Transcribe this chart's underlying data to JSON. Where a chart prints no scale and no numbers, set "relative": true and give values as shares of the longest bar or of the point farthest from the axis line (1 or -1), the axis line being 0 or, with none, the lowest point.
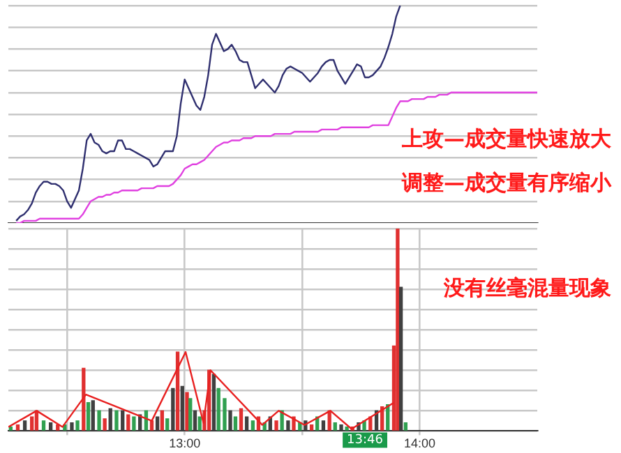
{
  "chart_data": [
    {
      "type": "line",
      "relative": true,
      "grid": "y",
      "tick_labels": false,
      "categories": [
        null,
        null,
        null,
        null,
        null,
        null,
        null,
        null,
        null,
        null,
        null,
        null,
        null,
        null,
        null,
        null,
        null,
        null,
        null,
        null,
        null,
        null,
        null,
        null,
        null,
        null,
        null,
        null,
        null,
        null,
        null,
        null,
        null,
        null,
        null,
        null,
        null,
        null,
        null,
        null,
        null,
        null,
        null,
        null,
        null,
        null,
        null,
        null,
        null,
        null,
        null,
        null,
        null,
        null,
        null,
        null,
        null,
        null,
        null,
        null,
        null,
        null,
        null,
        null,
        null,
        null,
        null,
        null,
        null,
        null,
        null,
        null,
        null,
        null,
        null,
        null,
        null,
        null,
        null,
        null,
        null,
        null,
        null,
        null,
        null,
        null,
        null,
        null,
        null,
        null,
        null,
        null,
        null,
        null,
        null,
        null,
        null,
        null,
        null,
        null,
        null,
        null,
        null,
        null,
        null,
        null,
        null,
        null,
        null,
        null,
        null,
        null,
        null,
        null,
        null,
        null,
        null,
        null,
        null,
        null,
        null,
        null,
        null,
        null,
        null,
        null,
        null,
        null,
        null,
        null,
        null,
        null,
        null,
        null,
        null,
        null
      ],
      "annotations": [
        "上攻—成交量快速放大",
        "调整—成交量有序缩小"
      ],
      "series": [
        {
          "color": "#2f2f6f",
          "values": [
            null,
            null,
            0.01,
            0.03,
            0.04,
            0.06,
            0.09,
            0.14,
            0.17,
            0.19,
            0.19,
            0.18,
            0.18,
            0.17,
            0.15,
            0.1,
            0.07,
            0.11,
            0.15,
            0.25,
            0.38,
            0.41,
            0.37,
            0.36,
            0.33,
            0.32,
            0.33,
            0.33,
            0.38,
            0.38,
            0.34,
            0.34,
            0.33,
            0.32,
            0.31,
            0.3,
            0.29,
            0.26,
            0.27,
            0.3,
            0.33,
            0.33,
            0.33,
            0.4,
            0.55,
            0.66,
            0.62,
            0.58,
            0.54,
            0.52,
            0.58,
            0.68,
            0.82,
            0.87,
            0.83,
            0.79,
            0.8,
            0.82,
            0.79,
            0.75,
            0.74,
            0.74,
            0.68,
            0.62,
            0.64,
            0.66,
            0.64,
            0.62,
            0.6,
            0.63,
            0.68,
            0.71,
            0.72,
            0.71,
            0.7,
            0.69,
            0.67,
            0.65,
            0.67,
            0.69,
            0.72,
            0.74,
            0.75,
            0.75,
            0.7,
            0.67,
            0.64,
            0.67,
            0.7,
            0.73,
            0.72,
            0.67,
            0.67,
            0.68,
            0.7,
            0.72,
            0.76,
            0.81,
            0.87,
            0.95,
            1,
            null,
            null,
            null,
            null,
            null,
            null,
            null,
            null,
            null,
            null,
            null,
            null,
            null,
            null,
            null,
            null,
            null,
            null,
            null,
            null,
            null,
            null,
            null,
            null,
            null,
            null,
            null,
            null,
            null,
            null,
            null,
            null,
            null,
            null,
            null
          ]
        },
        {
          "color": "#e040e0",
          "values": [
            null,
            null,
            0,
            0,
            0.01,
            0.01,
            0.01,
            0.01,
            0.02,
            0.02,
            0.02,
            0.02,
            0.02,
            0.02,
            0.02,
            0.02,
            0.02,
            0.02,
            0.02,
            0.04,
            0.07,
            0.1,
            0.11,
            0.12,
            0.12,
            0.13,
            0.13,
            0.14,
            0.14,
            0.15,
            0.15,
            0.15,
            0.15,
            0.15,
            0.16,
            0.16,
            0.16,
            0.16,
            0.17,
            0.17,
            0.17,
            0.17,
            0.18,
            0.2,
            0.22,
            0.25,
            0.26,
            0.27,
            0.27,
            0.28,
            0.29,
            0.31,
            0.33,
            0.35,
            0.36,
            0.37,
            0.37,
            0.38,
            0.38,
            0.38,
            0.39,
            0.39,
            0.39,
            0.4,
            0.4,
            0.4,
            0.4,
            0.4,
            0.41,
            0.41,
            0.41,
            0.41,
            0.41,
            0.42,
            0.42,
            0.42,
            0.42,
            0.42,
            0.42,
            0.42,
            0.43,
            0.43,
            0.43,
            0.43,
            0.43,
            0.44,
            0.44,
            0.44,
            0.44,
            0.44,
            0.44,
            0.44,
            0.44,
            0.45,
            0.45,
            0.45,
            0.45,
            0.45,
            0.49,
            0.53,
            0.56,
            0.56,
            0.56,
            0.57,
            0.57,
            0.57,
            0.57,
            0.58,
            0.58,
            0.58,
            0.59,
            0.59,
            0.59,
            0.6,
            0.6,
            0.6,
            0.6,
            0.6,
            0.6,
            0.6,
            0.6,
            0.6,
            0.6,
            0.6,
            0.6,
            0.6,
            0.6,
            0.6,
            0.6,
            0.6,
            0.6,
            0.6,
            0.6,
            0.6,
            0.6,
            0.6
          ]
        }
      ]
    },
    {
      "type": "bar",
      "relative": true,
      "grid": true,
      "tick_labels": "x",
      "xlim": [
        12.25,
        14.5
      ],
      "xticks": [
        {
          "value": 12.5,
          "label": null
        },
        {
          "value": 13,
          "label": "13:00"
        },
        {
          "value": 13.5,
          "label": null
        },
        {
          "value": 14,
          "label": "14:00"
        }
      ],
      "annotations": [
        "没有丝毫混量现象",
        {
          "text": "13:46",
          "x": 13.767
        }
      ],
      "series": [
        {
          "x": [
            12.26,
            12.29,
            12.32,
            12.35,
            12.37,
            12.4,
            12.43,
            12.46,
            12.49,
            12.52,
            12.544,
            12.57,
            12.59,
            12.61,
            12.636,
            12.66,
            12.684,
            12.71,
            12.736,
            12.76,
            12.784,
            12.81,
            12.836,
            12.86,
            12.884,
            12.904,
            12.926,
            12.95,
            12.97,
            12.99,
            13.01,
            13.024,
            13.044,
            13.064,
            13.084,
            13.104,
            13.124,
            13.144,
            13.17,
            13.194,
            13.216,
            13.24,
            13.264,
            13.29,
            13.314,
            13.34,
            13.364,
            13.39,
            13.414,
            13.44,
            13.464,
            13.49,
            13.514,
            13.54,
            13.564,
            13.59,
            13.616,
            13.64,
            13.666,
            13.69,
            13.714,
            13.74,
            13.764,
            13.79,
            13.816,
            13.84,
            13.864,
            13.89,
            13.906,
            13.92,
            13.94
          ],
          "values": [
            0.02,
            0.03,
            0.05,
            0.07,
            0.1,
            0.05,
            0.04,
            0.03,
            0.03,
            0.04,
            0.05,
            0.31,
            0.14,
            0.15,
            0.1,
            0.06,
            0.11,
            0.1,
            0.1,
            0.08,
            0.07,
            0.08,
            0.1,
            0.05,
            0.07,
            0.1,
            0.06,
            0.21,
            0.39,
            0.22,
            0.19,
            0.16,
            0.1,
            0.07,
            0.1,
            0.3,
            0.28,
            0.21,
            0.16,
            0.1,
            0.07,
            0.11,
            0.07,
            0.05,
            0.07,
            0.04,
            0.07,
            0.05,
            0.1,
            0.05,
            0.07,
            0.04,
            0.05,
            0.03,
            0.07,
            0.05,
            0.1,
            0.04,
            0.03,
            0.02,
            0.02,
            0.04,
            0.05,
            0.07,
            0.1,
            0.12,
            0.13,
            0.42,
            1,
            0.71,
            0.04
          ],
          "colors": [
            "#30a050",
            "#e03030",
            "#404040",
            "#e03030",
            "#e03030",
            "#30a050",
            "#404040",
            "#e03030",
            "#30a050",
            "#404040",
            "#30a050",
            "#e03030",
            "#30a050",
            "#404040",
            "#30a050",
            "#e03030",
            "#404040",
            "#30a050",
            "#404040",
            "#e03030",
            "#30a050",
            "#404040",
            "#30a050",
            "#e03030",
            "#404040",
            "#e03030",
            "#30a050",
            "#404040",
            "#e03030",
            "#404040",
            "#e03030",
            "#30a050",
            "#404040",
            "#30a050",
            "#e03030",
            "#e03030",
            "#404040",
            "#30a050",
            "#30a050",
            "#404040",
            "#30a050",
            "#e03030",
            "#404040",
            "#30a050",
            "#e03030",
            "#30a050",
            "#404040",
            "#e03030",
            "#30a050",
            "#404040",
            "#e03030",
            "#30a050",
            "#404040",
            "#e03030",
            "#30a050",
            "#404040",
            "#e03030",
            "#30a050",
            "#404040",
            "#30a050",
            "#e03030",
            "#404040",
            "#30a050",
            "#e03030",
            "#404040",
            "#e03030",
            "#30a050",
            "#e03030",
            "#e03030",
            "#404040",
            "#30a050"
          ]
        },
        {
          "type": "line",
          "color": "#e82020",
          "x": [
            12.25,
            12.37,
            12.48,
            12.58,
            12.86,
            13.004,
            13.08,
            13.11,
            13.33,
            13.4,
            13.51,
            13.62,
            13.71,
            13.89
          ],
          "values": [
            0.02,
            0.1,
            0.02,
            0.18,
            0.05,
            0.39,
            0.04,
            0.3,
            0.03,
            0.1,
            0.03,
            0.1,
            0.01,
            0.14
          ]
        }
      ]
    }
  ]
}
